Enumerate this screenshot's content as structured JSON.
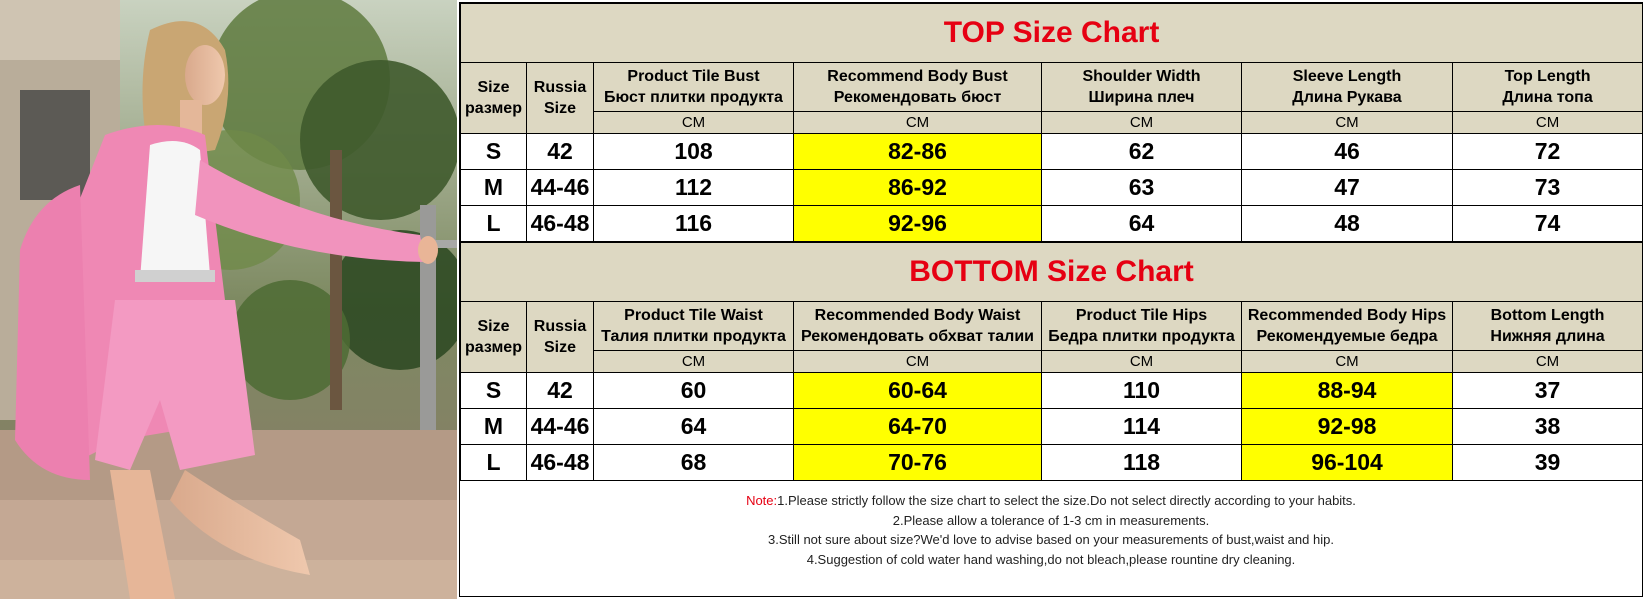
{
  "top": {
    "title": "TOP Size Chart",
    "headers": [
      [
        "Size",
        "размер"
      ],
      [
        "Russia",
        "Size"
      ],
      [
        "Product Tile Bust",
        "Бюст плитки продукта"
      ],
      [
        "Recommend Body Bust",
        "Рекомендовать бюст"
      ],
      [
        "Shoulder Width",
        "Ширина плеч"
      ],
      [
        "Sleeve Length",
        "Длина Рукава"
      ],
      [
        "Top Length",
        "Длина топа"
      ]
    ],
    "units": [
      "CM",
      "CM",
      "CM",
      "CM",
      "CM"
    ],
    "rows": [
      [
        "S",
        "42",
        "108",
        "82-86",
        "62",
        "46",
        "72"
      ],
      [
        "M",
        "44-46",
        "112",
        "86-92",
        "63",
        "47",
        "73"
      ],
      [
        "L",
        "46-48",
        "116",
        "92-96",
        "64",
        "48",
        "74"
      ]
    ]
  },
  "bottom": {
    "title": "BOTTOM  Size Chart",
    "headers": [
      [
        "Size",
        "размер"
      ],
      [
        "Russia",
        "Size"
      ],
      [
        "Product Tile  Waist",
        "Талия плитки продукта"
      ],
      [
        "Recommended  Body Waist",
        "Рекомендовать обхват талии"
      ],
      [
        "Product Tile  Hips",
        "Бедра плитки продукта"
      ],
      [
        "Recommended Body Hips",
        "Рекомендуемые бедра"
      ],
      [
        "Bottom Length",
        "Нижняя длина"
      ]
    ],
    "units": [
      "CM",
      "CM",
      "CM",
      "CM",
      "CM"
    ],
    "rows": [
      [
        "S",
        "42",
        "60",
        "60-64",
        "110",
        "88-94",
        "37"
      ],
      [
        "M",
        "44-46",
        "64",
        "64-70",
        "114",
        "92-98",
        "38"
      ],
      [
        "L",
        "46-48",
        "68",
        "70-76",
        "118",
        "96-104",
        "39"
      ]
    ]
  },
  "notes": {
    "label": "Note:",
    "lines": [
      "1.Please strictly follow the size chart to select the size.Do not select directly according to your habits.",
      "2.Please allow a tolerance of 1-3 cm in measurements.",
      "3.Still not sure about size?We'd love to advise based on your measurements of bust,waist and hip.",
      "4.Suggestion of cold water hand washing,do not bleach,please rountine dry cleaning."
    ]
  },
  "colors": {
    "title": "#e60012",
    "header_bg": "#ddd8c2",
    "highlight": "#ffff00"
  }
}
